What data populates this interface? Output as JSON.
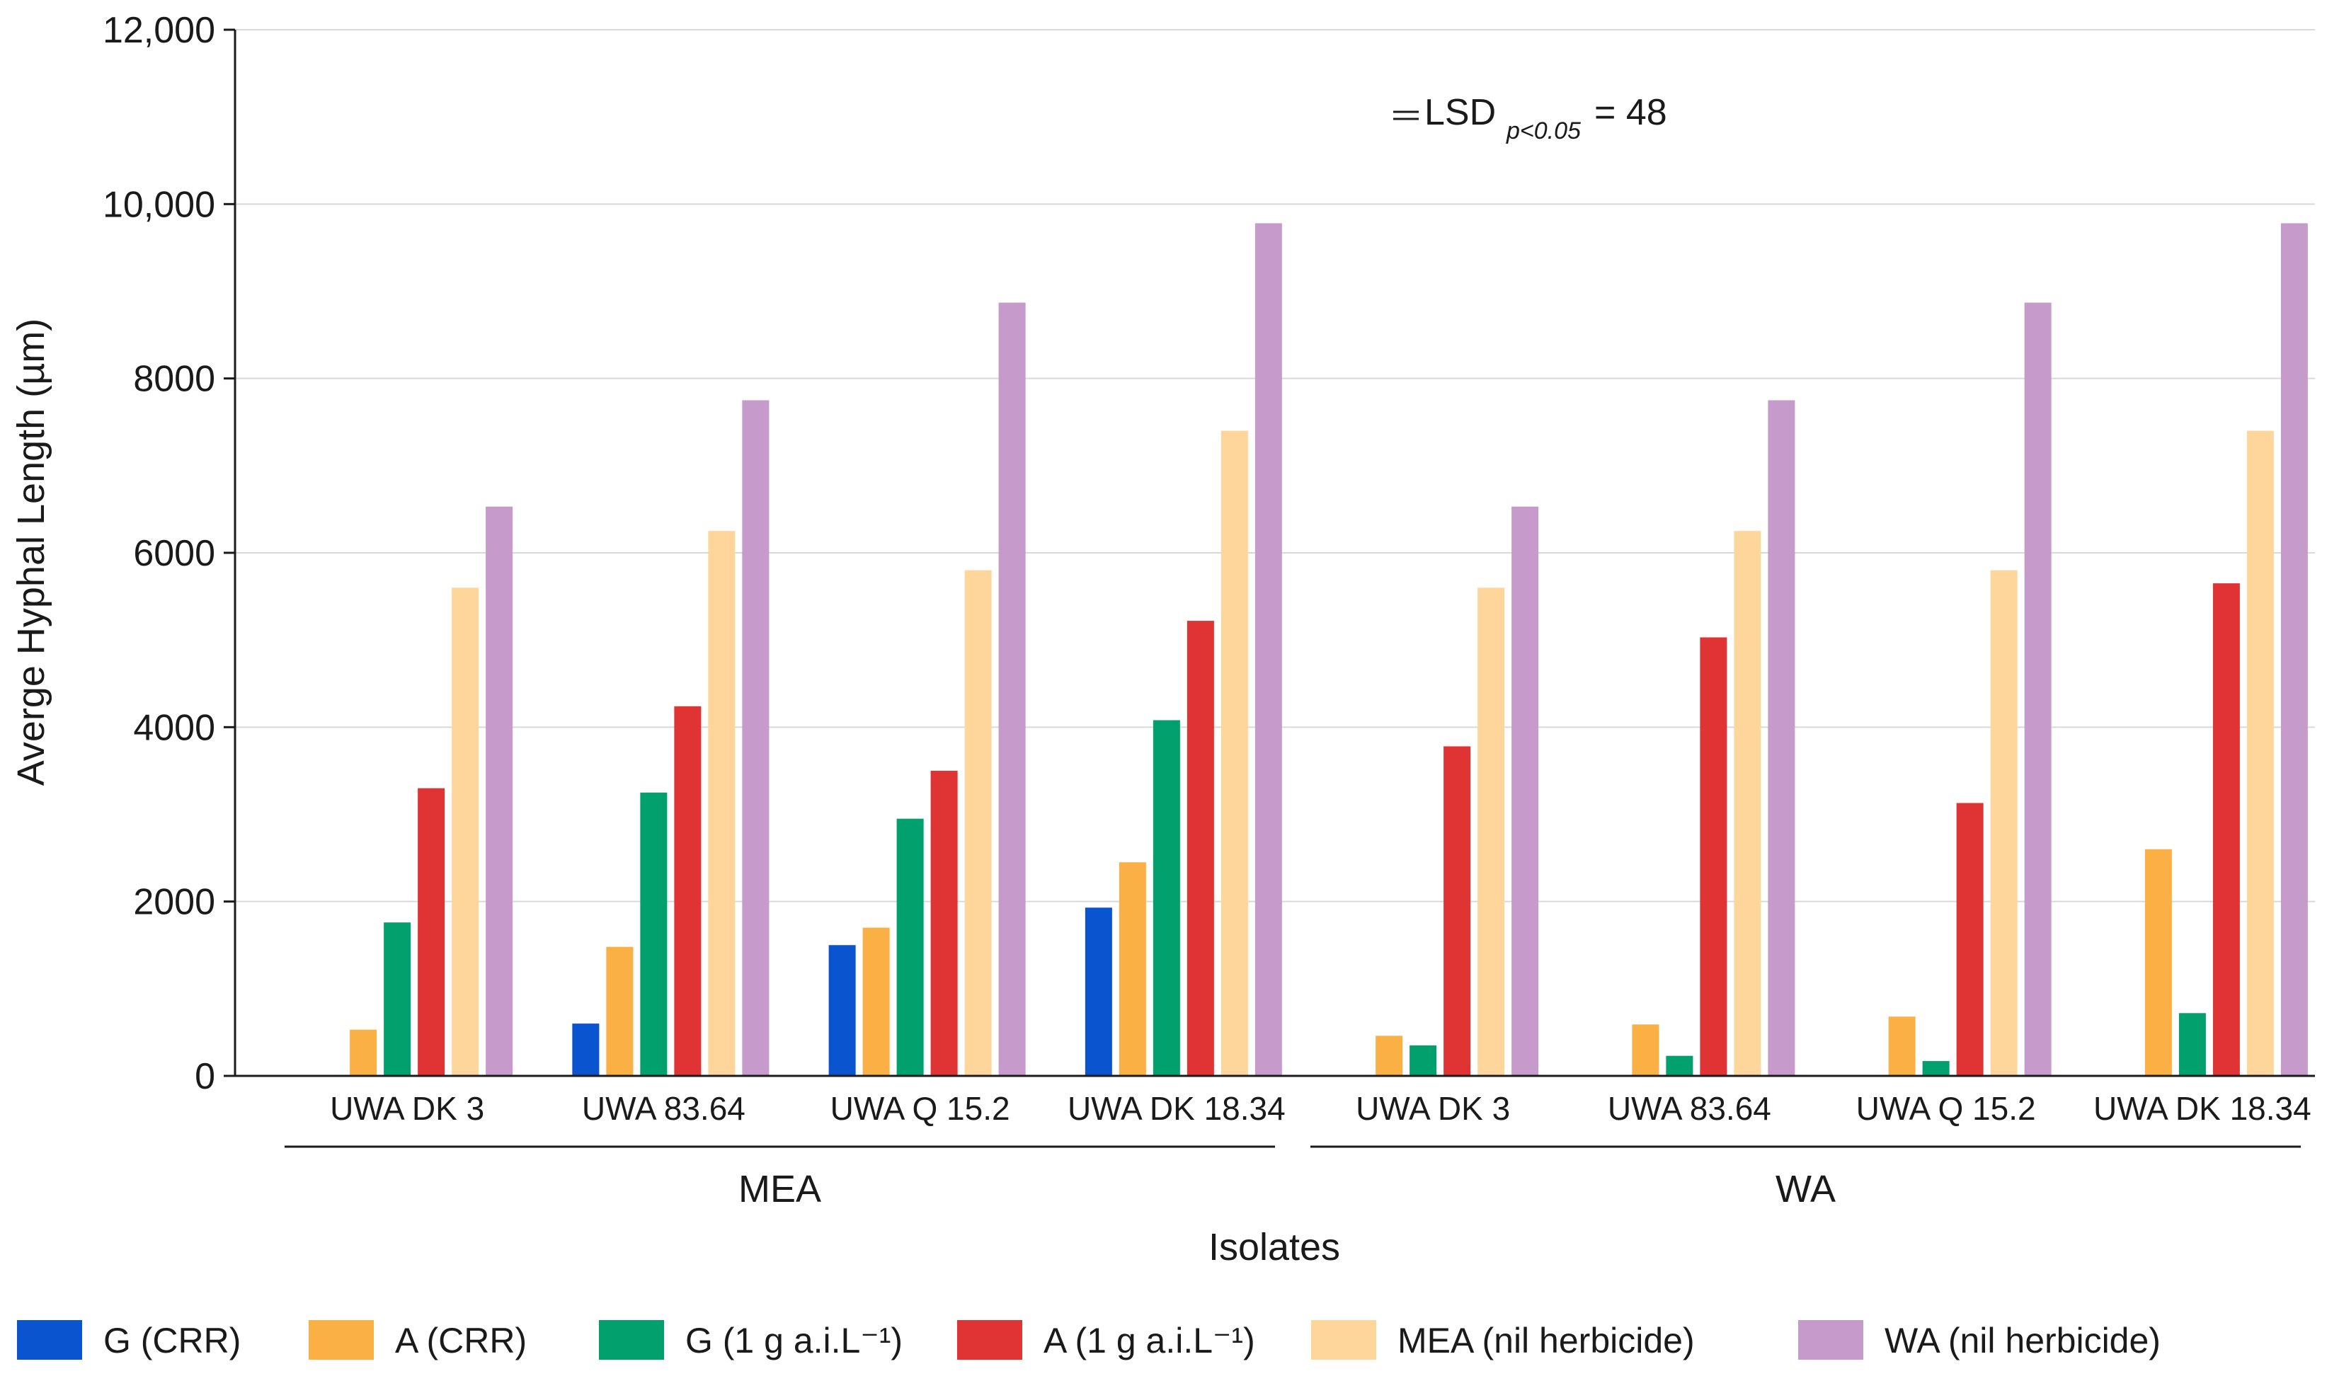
{
  "chart_data": {
    "type": "bar",
    "title": "",
    "xlabel": "Isolates",
    "ylabel": "Averge Hyphal Length (µm)",
    "ylim": [
      0,
      12000
    ],
    "yticks": [
      0,
      2000,
      4000,
      6000,
      8000,
      10000,
      12000
    ],
    "ytick_labels": [
      "0",
      "2000",
      "4000",
      "6000",
      "8000",
      "10,000",
      "12,000"
    ],
    "grid": "horizontal",
    "legend_position": "bottom",
    "annotation": {
      "text_main": "LSD",
      "text_sub": "p<0.05",
      "text_value": "= 48"
    },
    "groups": [
      {
        "label": "MEA",
        "categories": [
          "UWA DK 3",
          "UWA 83.64",
          "UWA Q 15.2",
          "UWA DK 18.34"
        ]
      },
      {
        "label": "WA",
        "categories": [
          "UWA DK 3",
          "UWA 83.64",
          "UWA Q 15.2",
          "UWA DK 18.34"
        ]
      }
    ],
    "categories": [
      "UWA DK 3",
      "UWA 83.64",
      "UWA Q 15.2",
      "UWA DK 18.34",
      "UWA DK 3",
      "UWA 83.64",
      "UWA Q 15.2",
      "UWA DK 18.34"
    ],
    "series": [
      {
        "name": "G (CRR)",
        "color": "#0a54d0",
        "values": [
          0,
          600,
          1500,
          1930,
          0,
          0,
          0,
          0
        ]
      },
      {
        "name": "A (CRR)",
        "color": "#fbb045",
        "values": [
          530,
          1480,
          1700,
          2450,
          460,
          590,
          680,
          2600
        ]
      },
      {
        "name": "G (1 g a.i.L⁻¹)",
        "color": "#02a06c",
        "values": [
          1760,
          3250,
          2950,
          4080,
          350,
          230,
          170,
          720
        ]
      },
      {
        "name": "A (1 g a.i.L⁻¹)",
        "color": "#e03434",
        "values": [
          3300,
          4240,
          3500,
          5220,
          3780,
          5030,
          3130,
          5650
        ]
      },
      {
        "name": "MEA (nil herbicide)",
        "color": "#fed69b",
        "values": [
          5600,
          6250,
          5800,
          7400,
          5600,
          6250,
          5800,
          7400
        ]
      },
      {
        "name": "WA (nil herbicide)",
        "color": "#c69bcc",
        "values": [
          6530,
          7750,
          8870,
          9780,
          6530,
          7750,
          8870,
          9780
        ]
      }
    ]
  }
}
